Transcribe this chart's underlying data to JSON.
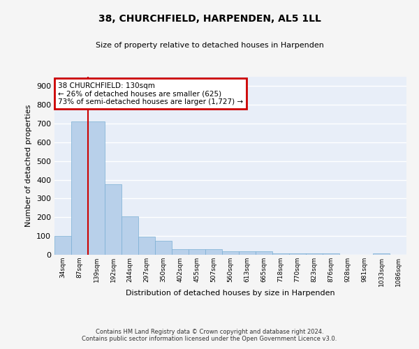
{
  "title": "38, CHURCHFIELD, HARPENDEN, AL5 1LL",
  "subtitle": "Size of property relative to detached houses in Harpenden",
  "xlabel": "Distribution of detached houses by size in Harpenden",
  "ylabel": "Number of detached properties",
  "bar_labels": [
    "34sqm",
    "87sqm",
    "139sqm",
    "192sqm",
    "244sqm",
    "297sqm",
    "350sqm",
    "402sqm",
    "455sqm",
    "507sqm",
    "560sqm",
    "613sqm",
    "665sqm",
    "718sqm",
    "770sqm",
    "823sqm",
    "876sqm",
    "928sqm",
    "981sqm",
    "1033sqm",
    "1086sqm"
  ],
  "bar_values": [
    100,
    710,
    710,
    375,
    205,
    97,
    73,
    30,
    30,
    28,
    20,
    20,
    20,
    8,
    8,
    8,
    8,
    0,
    0,
    8,
    0
  ],
  "bar_color": "#b8d0ea",
  "bar_edge_color": "#7aafd4",
  "annotation_text": "38 CHURCHFIELD: 130sqm\n← 26% of detached houses are smaller (625)\n73% of semi-detached houses are larger (1,727) →",
  "annotation_box_color": "#cc0000",
  "background_color": "#e8eef8",
  "grid_color": "#ffffff",
  "fig_bg_color": "#f5f5f5",
  "footer_text": "Contains HM Land Registry data © Crown copyright and database right 2024.\nContains public sector information licensed under the Open Government Licence v3.0.",
  "ylim": [
    0,
    950
  ],
  "yticks": [
    0,
    100,
    200,
    300,
    400,
    500,
    600,
    700,
    800,
    900
  ]
}
